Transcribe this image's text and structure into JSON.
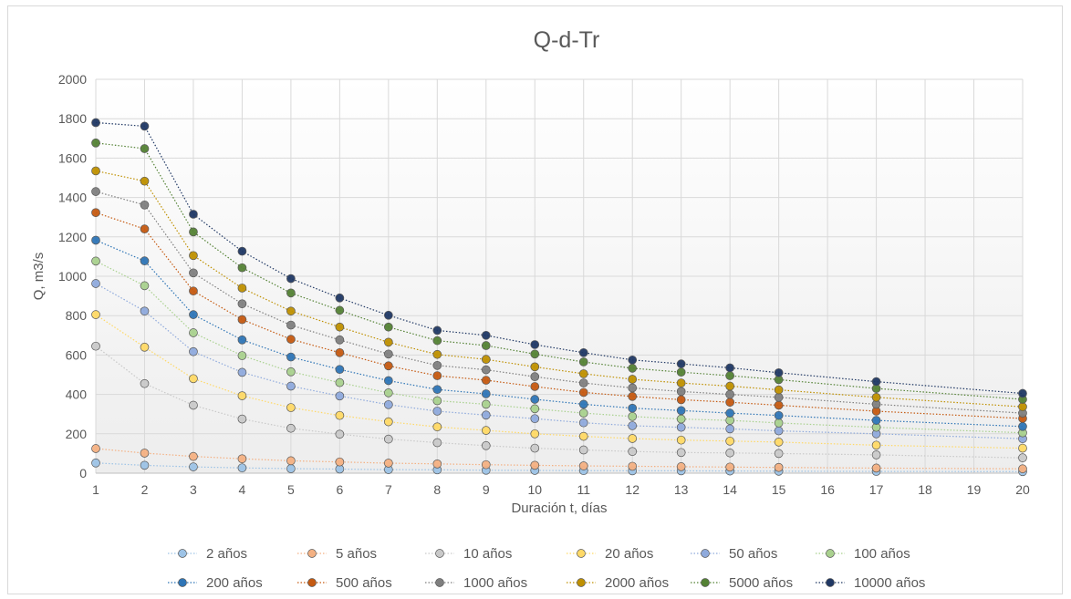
{
  "chart_data": {
    "type": "line",
    "title": "Q-d-Tr",
    "xlabel": "Duración t, días",
    "ylabel": "Q, m3/s",
    "xlim": [
      1,
      20
    ],
    "ylim": [
      0,
      2000
    ],
    "xticks": [
      "1",
      "2",
      "3",
      "4",
      "5",
      "6",
      "7",
      "8",
      "9",
      "10",
      "11",
      "12",
      "13",
      "14",
      "15",
      "16",
      "17",
      "18",
      "19",
      "20"
    ],
    "yticks": [
      "0",
      "200",
      "400",
      "600",
      "800",
      "1000",
      "1200",
      "1400",
      "1600",
      "1800",
      "2000"
    ],
    "grid": true,
    "legend_position": "bottom",
    "x": [
      1,
      2,
      3,
      4,
      5,
      6,
      7,
      8,
      9,
      10,
      11,
      12,
      13,
      14,
      15,
      17,
      20
    ],
    "series": [
      {
        "name": "2 años",
        "color": "#9dc3e6",
        "values": [
          52,
          40,
          32,
          27,
          23,
          21,
          18,
          17,
          15,
          14,
          13,
          12,
          12,
          11,
          10,
          9,
          8
        ]
      },
      {
        "name": "5 años",
        "color": "#f4b183",
        "values": [
          125,
          102,
          85,
          73,
          63,
          57,
          51,
          47,
          43,
          40,
          37,
          35,
          33,
          31,
          29,
          26,
          22
        ]
      },
      {
        "name": "10 años",
        "color": "#c9c9c9",
        "values": [
          645,
          455,
          345,
          275,
          228,
          198,
          173,
          155,
          140,
          127,
          118,
          110,
          105,
          103,
          100,
          93,
          78
        ]
      },
      {
        "name": "20 años",
        "color": "#ffd966",
        "values": [
          805,
          640,
          480,
          393,
          333,
          293,
          261,
          235,
          217,
          200,
          187,
          176,
          168,
          163,
          158,
          142,
          127
        ]
      },
      {
        "name": "50 años",
        "color": "#8faadc",
        "values": [
          963,
          823,
          617,
          512,
          442,
          392,
          348,
          315,
          295,
          277,
          256,
          241,
          233,
          225,
          215,
          200,
          175
        ]
      },
      {
        "name": "100 años",
        "color": "#a9d18e",
        "values": [
          1077,
          952,
          713,
          597,
          515,
          460,
          408,
          368,
          350,
          327,
          305,
          288,
          275,
          268,
          255,
          233,
          205
        ]
      },
      {
        "name": "200 años",
        "color": "#2e75b6",
        "values": [
          1183,
          1078,
          805,
          677,
          590,
          527,
          470,
          425,
          403,
          375,
          350,
          330,
          318,
          305,
          293,
          268,
          237
        ]
      },
      {
        "name": "500 años",
        "color": "#c55a11",
        "values": [
          1323,
          1240,
          925,
          780,
          680,
          612,
          545,
          495,
          472,
          440,
          410,
          390,
          373,
          360,
          345,
          315,
          278
        ]
      },
      {
        "name": "1000 años",
        "color": "#7f7f7f",
        "values": [
          1430,
          1362,
          1017,
          860,
          752,
          677,
          605,
          547,
          525,
          490,
          458,
          433,
          415,
          400,
          385,
          350,
          305
        ]
      },
      {
        "name": "2000 años",
        "color": "#bf9000",
        "values": [
          1535,
          1483,
          1105,
          940,
          823,
          742,
          665,
          603,
          578,
          540,
          505,
          477,
          458,
          442,
          423,
          385,
          337
        ]
      },
      {
        "name": "5000 años",
        "color": "#548235",
        "values": [
          1677,
          1648,
          1225,
          1043,
          915,
          827,
          742,
          673,
          648,
          605,
          565,
          533,
          513,
          495,
          475,
          430,
          375
        ]
      },
      {
        "name": "10000 años",
        "color": "#203864",
        "values": [
          1780,
          1762,
          1315,
          1127,
          988,
          890,
          802,
          725,
          700,
          653,
          612,
          575,
          555,
          535,
          510,
          465,
          405
        ]
      }
    ]
  }
}
